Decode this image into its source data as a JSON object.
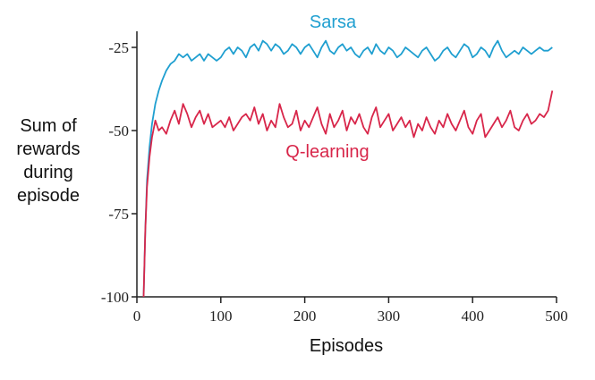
{
  "chart_data": {
    "type": "line",
    "xlabel": "Episodes",
    "ylabel_lines": [
      "Sum of",
      "rewards",
      "during",
      "episode"
    ],
    "xlim": [
      0,
      500
    ],
    "ylim": [
      -100,
      -20
    ],
    "x_ticks": [
      0,
      100,
      200,
      300,
      400,
      500
    ],
    "x_tick_labels": [
      "0",
      "100",
      "200",
      "300",
      "400",
      "500"
    ],
    "y_ticks": [
      -25,
      -50,
      -75,
      -100
    ],
    "y_tick_labels": [
      "-25",
      "-50",
      "-75",
      "-100"
    ],
    "grid": false,
    "legend": "inline labels",
    "series": [
      {
        "name": "Sarsa",
        "color": "#1f9fd0",
        "x": [
          8,
          10,
          12,
          15,
          18,
          22,
          26,
          30,
          35,
          40,
          45,
          50,
          55,
          60,
          65,
          70,
          75,
          80,
          85,
          90,
          95,
          100,
          105,
          110,
          115,
          120,
          125,
          130,
          135,
          140,
          145,
          150,
          155,
          160,
          165,
          170,
          175,
          180,
          185,
          190,
          195,
          200,
          205,
          210,
          215,
          220,
          225,
          230,
          235,
          240,
          245,
          250,
          255,
          260,
          265,
          270,
          275,
          280,
          285,
          290,
          295,
          300,
          305,
          310,
          315,
          320,
          325,
          330,
          335,
          340,
          345,
          350,
          355,
          360,
          365,
          370,
          375,
          380,
          385,
          390,
          395,
          400,
          405,
          410,
          415,
          420,
          425,
          430,
          435,
          440,
          445,
          450,
          455,
          460,
          465,
          470,
          475,
          480,
          485,
          490,
          495
        ],
        "y": [
          -100,
          -80,
          -65,
          -55,
          -48,
          -42,
          -38,
          -35,
          -32,
          -30,
          -29,
          -27,
          -28,
          -27,
          -29,
          -28,
          -27,
          -29,
          -27,
          -28,
          -29,
          -28,
          -26,
          -25,
          -27,
          -25,
          -26,
          -28,
          -25,
          -24,
          -26,
          -23,
          -24,
          -26,
          -24,
          -25,
          -27,
          -26,
          -24,
          -25,
          -27,
          -25,
          -24,
          -26,
          -28,
          -25,
          -23,
          -26,
          -27,
          -25,
          -24,
          -26,
          -25,
          -27,
          -28,
          -26,
          -25,
          -27,
          -24,
          -26,
          -27,
          -25,
          -26,
          -28,
          -27,
          -25,
          -26,
          -27,
          -28,
          -26,
          -25,
          -27,
          -29,
          -28,
          -26,
          -25,
          -27,
          -28,
          -26,
          -24,
          -25,
          -28,
          -27,
          -25,
          -26,
          -28,
          -25,
          -23,
          -26,
          -28,
          -27,
          -26,
          -27,
          -25,
          -26,
          -27,
          -26,
          -25,
          -26,
          -26,
          -25
        ]
      },
      {
        "name": "Q-learning",
        "color": "#d8264a",
        "x": [
          8,
          10,
          12,
          15,
          18,
          22,
          26,
          30,
          35,
          40,
          45,
          50,
          55,
          60,
          65,
          70,
          75,
          80,
          85,
          90,
          95,
          100,
          105,
          110,
          115,
          120,
          125,
          130,
          135,
          140,
          145,
          150,
          155,
          160,
          165,
          170,
          175,
          180,
          185,
          190,
          195,
          200,
          205,
          210,
          215,
          220,
          225,
          230,
          235,
          240,
          245,
          250,
          255,
          260,
          265,
          270,
          275,
          280,
          285,
          290,
          295,
          300,
          305,
          310,
          315,
          320,
          325,
          330,
          335,
          340,
          345,
          350,
          355,
          360,
          365,
          370,
          375,
          380,
          385,
          390,
          395,
          400,
          405,
          410,
          415,
          420,
          425,
          430,
          435,
          440,
          445,
          450,
          455,
          460,
          465,
          470,
          475,
          480,
          485,
          490,
          495
        ],
        "y": [
          -100,
          -80,
          -67,
          -58,
          -52,
          -47,
          -50,
          -49,
          -51,
          -47,
          -44,
          -48,
          -42,
          -45,
          -49,
          -46,
          -44,
          -48,
          -45,
          -49,
          -48,
          -47,
          -49,
          -46,
          -50,
          -48,
          -46,
          -45,
          -47,
          -43,
          -48,
          -45,
          -50,
          -47,
          -49,
          -42,
          -46,
          -49,
          -48,
          -44,
          -50,
          -47,
          -49,
          -46,
          -43,
          -48,
          -51,
          -45,
          -49,
          -47,
          -44,
          -50,
          -46,
          -48,
          -45,
          -49,
          -51,
          -46,
          -43,
          -49,
          -47,
          -45,
          -50,
          -48,
          -46,
          -49,
          -47,
          -52,
          -48,
          -50,
          -46,
          -49,
          -51,
          -47,
          -49,
          -45,
          -48,
          -50,
          -47,
          -44,
          -49,
          -51,
          -47,
          -45,
          -52,
          -50,
          -48,
          -46,
          -49,
          -47,
          -44,
          -49,
          -50,
          -47,
          -45,
          -48,
          -47,
          -45,
          -46,
          -44,
          -38
        ]
      }
    ]
  }
}
